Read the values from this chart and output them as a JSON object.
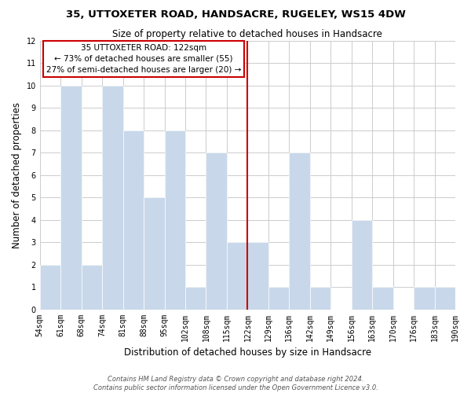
{
  "title": "35, UTTOXETER ROAD, HANDSACRE, RUGELEY, WS15 4DW",
  "subtitle": "Size of property relative to detached houses in Handsacre",
  "xlabel": "Distribution of detached houses by size in Handsacre",
  "ylabel": "Number of detached properties",
  "bar_color": "#c8d8ea",
  "bar_edge_color": "#ffffff",
  "grid_color": "#cccccc",
  "reference_line_color": "#cc0000",
  "bin_labels": [
    "54sqm",
    "61sqm",
    "68sqm",
    "74sqm",
    "81sqm",
    "88sqm",
    "95sqm",
    "102sqm",
    "108sqm",
    "115sqm",
    "122sqm",
    "129sqm",
    "136sqm",
    "142sqm",
    "149sqm",
    "156sqm",
    "163sqm",
    "170sqm",
    "176sqm",
    "183sqm",
    "190sqm"
  ],
  "counts": [
    2,
    10,
    2,
    10,
    8,
    5,
    8,
    1,
    7,
    3,
    3,
    1,
    7,
    1,
    0,
    4,
    1,
    0,
    1,
    1
  ],
  "reference_bar_index": 10,
  "ylim": [
    0,
    12
  ],
  "yticks": [
    0,
    1,
    2,
    3,
    4,
    5,
    6,
    7,
    8,
    9,
    10,
    11,
    12
  ],
  "annotation_title": "35 UTTOXETER ROAD: 122sqm",
  "annotation_line1": "← 73% of detached houses are smaller (55)",
  "annotation_line2": "27% of semi-detached houses are larger (20) →",
  "annotation_box_color": "#ffffff",
  "annotation_box_edge_color": "#cc0000",
  "footer_line1": "Contains HM Land Registry data © Crown copyright and database right 2024.",
  "footer_line2": "Contains public sector information licensed under the Open Government Licence v3.0.",
  "background_color": "#ffffff",
  "title_fontsize": 9.5,
  "subtitle_fontsize": 8.5,
  "ylabel_fontsize": 8.5,
  "xlabel_fontsize": 8.5,
  "tick_fontsize": 7,
  "annotation_fontsize": 7.5,
  "footer_fontsize": 6
}
